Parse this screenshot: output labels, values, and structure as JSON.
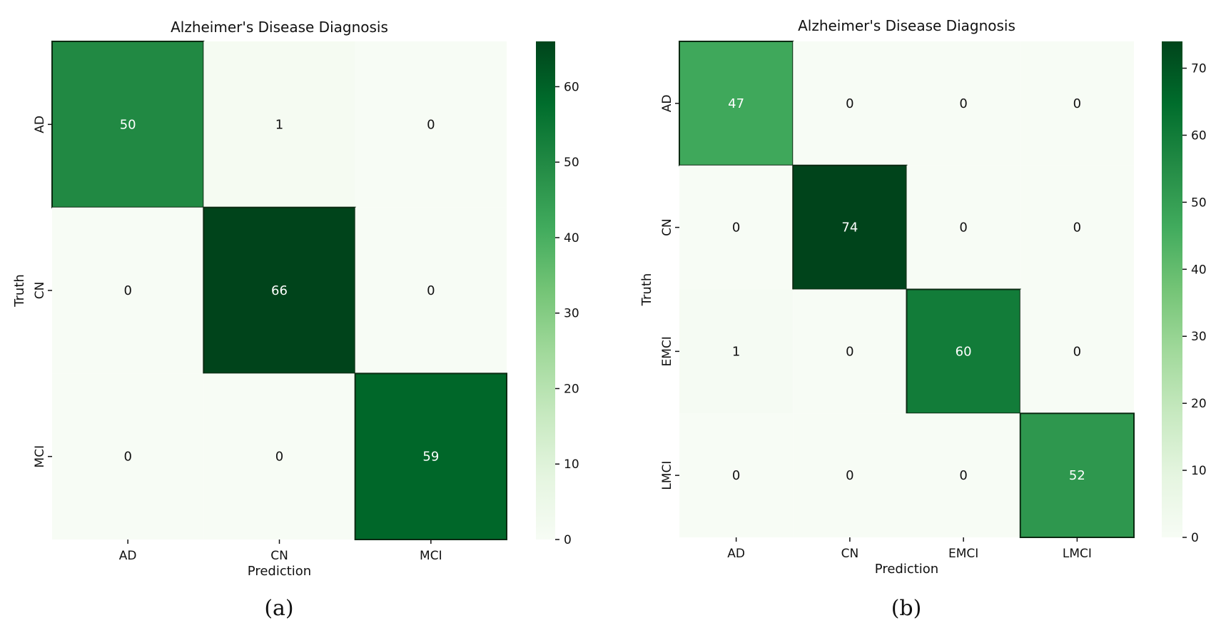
{
  "chart_data": [
    {
      "type": "heatmap",
      "panel": "(a)",
      "title": "Alzheimer's Disease Diagnosis",
      "xlabel": "Prediction",
      "ylabel": "Truth",
      "x_categories": [
        "AD",
        "CN",
        "MCI"
      ],
      "y_categories": [
        "AD",
        "CN",
        "MCI"
      ],
      "values": [
        [
          50,
          1,
          0
        ],
        [
          0,
          66,
          0
        ],
        [
          0,
          0,
          59
        ]
      ],
      "colorbar": {
        "min": 0,
        "max": 66,
        "ticks": [
          0,
          10,
          20,
          30,
          40,
          50,
          60
        ]
      },
      "colormap": "Greens"
    },
    {
      "type": "heatmap",
      "panel": "(b)",
      "title": "Alzheimer's Disease Diagnosis",
      "xlabel": "Prediction",
      "ylabel": "Truth",
      "x_categories": [
        "AD",
        "CN",
        "EMCI",
        "LMCI"
      ],
      "y_categories": [
        "AD",
        "CN",
        "EMCI",
        "LMCI"
      ],
      "values": [
        [
          47,
          0,
          0,
          0
        ],
        [
          0,
          74,
          0,
          0
        ],
        [
          1,
          0,
          60,
          0
        ],
        [
          0,
          0,
          0,
          52
        ]
      ],
      "colorbar": {
        "min": 0,
        "max": 74,
        "ticks": [
          0,
          10,
          20,
          30,
          40,
          50,
          60,
          70
        ]
      },
      "colormap": "Greens"
    }
  ],
  "captions": [
    "(a)",
    "(b)"
  ]
}
